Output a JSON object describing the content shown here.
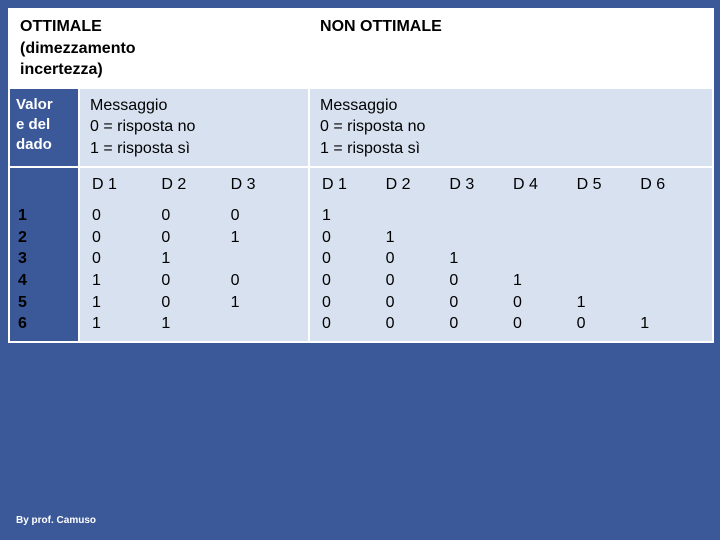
{
  "header": {
    "ottimale_title": "OTTIMALE\n(dimezzamento\nincertezza)",
    "non_ottimale_title": "NON OTTIMALE"
  },
  "rowlabel": "Valor\ne del\ndado",
  "message_left": "Messaggio\n0 = risposta no\n1 = risposta sì",
  "message_right": "Messaggio\n0 = risposta no\n1 = risposta sì",
  "left_table": {
    "columns": [
      "D 1",
      "D 2",
      "D 3"
    ],
    "rows": [
      [
        "1",
        "0",
        "0",
        "0"
      ],
      [
        "2",
        "0",
        "0",
        "1"
      ],
      [
        "3",
        "0",
        "1",
        ""
      ],
      [
        "4",
        "1",
        "0",
        "0"
      ],
      [
        "5",
        "1",
        "0",
        "1"
      ],
      [
        "6",
        "1",
        "1",
        ""
      ]
    ]
  },
  "right_table": {
    "columns": [
      "D 1",
      "D 2",
      "D 3",
      "D 4",
      "D 5",
      "D 6"
    ],
    "rows": [
      [
        "1",
        "",
        "",
        "",
        "",
        ""
      ],
      [
        "0",
        "1",
        "",
        "",
        "",
        ""
      ],
      [
        "0",
        "0",
        "1",
        "",
        "",
        ""
      ],
      [
        "0",
        "0",
        "0",
        "1",
        "",
        ""
      ],
      [
        "0",
        "0",
        "0",
        "0",
        "1",
        ""
      ],
      [
        "0",
        "0",
        "0",
        "0",
        "0",
        "1"
      ]
    ]
  },
  "footer": "By prof. Camuso"
}
